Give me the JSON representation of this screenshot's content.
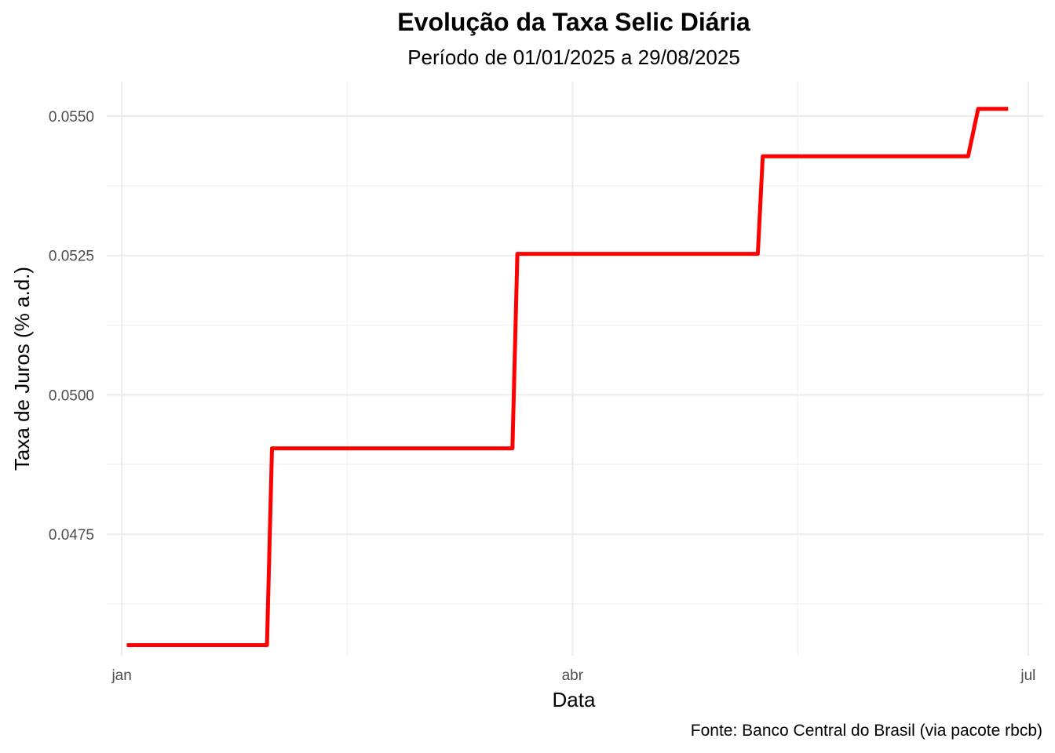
{
  "chart_data": {
    "type": "line",
    "title": "Evolução da Taxa Selic Diária",
    "subtitle": "Período de 01/01/2025 a 29/08/2025",
    "xlabel": "Data",
    "ylabel": "Taxa de Juros (% a.d.)",
    "caption": "Fonte: Banco Central do Brasil (via pacote rbcb)",
    "x_axis_type": "date",
    "xlim": [
      "2024-12-29",
      "2025-07-04"
    ],
    "ylim": [
      0.04532,
      0.05562
    ],
    "x_ticks": [
      {
        "date": "2025-01-01",
        "label": "jan"
      },
      {
        "date": "2025-04-01",
        "label": "abr"
      },
      {
        "date": "2025-07-01",
        "label": "jul"
      }
    ],
    "x_minor_ticks": [
      "2025-02-15",
      "2025-05-16"
    ],
    "y_ticks": [
      {
        "value": 0.0475,
        "label": "0.0475"
      },
      {
        "value": 0.05,
        "label": "0.0500"
      },
      {
        "value": 0.0525,
        "label": "0.0525"
      },
      {
        "value": 0.055,
        "label": "0.0550"
      }
    ],
    "y_minor_ticks": [
      0.04625,
      0.04875,
      0.05125,
      0.05375
    ],
    "grid": true,
    "series": [
      {
        "color": "#FF0000",
        "x": [
          "2025-01-02",
          "2025-01-30",
          "2025-01-31",
          "2025-03-20",
          "2025-03-21",
          "2025-05-08",
          "2025-05-09",
          "2025-06-19",
          "2025-06-21",
          "2025-06-27"
        ],
        "values": [
          0.04551,
          0.04551,
          0.04904,
          0.04904,
          0.05253,
          0.05253,
          0.05428,
          0.05428,
          0.05513,
          0.05513
        ]
      }
    ]
  }
}
